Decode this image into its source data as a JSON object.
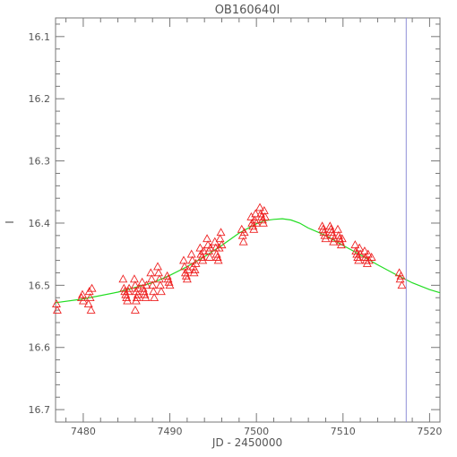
{
  "chart_data": {
    "type": "scatter",
    "title": "OB160640I",
    "xlabel": "JD - 2450000",
    "ylabel": "I",
    "xlim": [
      7476.8,
      7521.2
    ],
    "ylim": [
      16.72,
      16.07
    ],
    "y_inverted": true,
    "x_ticks": [
      7480,
      7490,
      7500,
      7510,
      7520
    ],
    "y_ticks": [
      16.1,
      16.2,
      16.3,
      16.4,
      16.5,
      16.6,
      16.7
    ],
    "x_tick_labels": [
      "7480",
      "7490",
      "7500",
      "7510",
      "7520"
    ],
    "y_tick_labels": [
      "16.1",
      "16.2",
      "16.3",
      "16.4",
      "16.5",
      "16.6",
      "16.7"
    ],
    "grid": false,
    "vertical_line": {
      "x": 7517.3,
      "color": "#8f8fd8"
    },
    "model_curve": {
      "color": "#22dd22",
      "x": [
        7476.8,
        7480,
        7484,
        7488,
        7490,
        7492,
        7494,
        7496,
        7498,
        7500,
        7501,
        7502,
        7503,
        7504,
        7505,
        7506,
        7508,
        7510,
        7512,
        7514,
        7516,
        7518,
        7520,
        7521.2
      ],
      "y": [
        16.528,
        16.522,
        16.511,
        16.496,
        16.484,
        16.47,
        16.454,
        16.436,
        16.416,
        16.401,
        16.396,
        16.394,
        16.393,
        16.395,
        16.4,
        16.408,
        16.42,
        16.436,
        16.451,
        16.467,
        16.482,
        16.496,
        16.507,
        16.512
      ]
    },
    "series": [
      {
        "marker": "triangle-open",
        "color": "#ee2222",
        "x": [
          7476.9,
          7477.0,
          7479.8,
          7479.9,
          7480.0,
          7480.6,
          7480.7,
          7480.8,
          7480.9,
          7481.0,
          7484.6,
          7484.7,
          7484.8,
          7484.9,
          7485.0,
          7485.1,
          7485.2,
          7485.3,
          7485.9,
          7486.0,
          7486.1,
          7486.2,
          7486.3,
          7486.4,
          7486.0,
          7486.1,
          7486.8,
          7486.9,
          7487.0,
          7487.1,
          7487.2,
          7487.3,
          7487.8,
          7487.9,
          7488.0,
          7488.1,
          7488.2,
          7488.6,
          7488.7,
          7488.8,
          7488.9,
          7489.0,
          7489.7,
          7489.8,
          7489.9,
          7490.0,
          7491.6,
          7491.7,
          7491.8,
          7491.9,
          7492.0,
          7492.1,
          7492.5,
          7492.6,
          7492.7,
          7492.8,
          7492.9,
          7493.0,
          7493.5,
          7493.6,
          7493.7,
          7493.8,
          7493.9,
          7494.3,
          7494.4,
          7494.5,
          7494.6,
          7494.7,
          7495.2,
          7495.3,
          7495.4,
          7495.5,
          7495.6,
          7495.7,
          7495.8,
          7495.9,
          7496.0,
          7498.3,
          7498.4,
          7498.5,
          7498.6,
          7499.4,
          7499.5,
          7499.6,
          7499.7,
          7499.8,
          7499.9,
          7500.0,
          7500.4,
          7500.5,
          7500.6,
          7500.7,
          7500.8,
          7500.9,
          7501.0,
          7507.6,
          7507.7,
          7507.8,
          7507.9,
          7508.0,
          7508.5,
          7508.6,
          7508.7,
          7508.8,
          7508.9,
          7509.0,
          7509.4,
          7509.5,
          7509.6,
          7509.7,
          7509.8,
          7509.9,
          7511.4,
          7511.5,
          7511.6,
          7511.7,
          7511.8,
          7511.9,
          7512.0,
          7512.5,
          7512.6,
          7512.7,
          7512.8,
          7512.9,
          7513.0,
          7513.3,
          7516.5,
          7516.6,
          7516.7,
          7516.8
        ],
        "y": [
          16.53,
          16.54,
          16.52,
          16.515,
          16.525,
          16.53,
          16.51,
          16.52,
          16.54,
          16.505,
          16.49,
          16.505,
          16.51,
          16.515,
          16.52,
          16.525,
          16.51,
          16.505,
          16.49,
          16.5,
          16.51,
          16.52,
          16.515,
          16.505,
          16.54,
          16.525,
          16.495,
          16.505,
          16.51,
          16.515,
          16.52,
          16.5,
          16.48,
          16.49,
          16.5,
          16.51,
          16.52,
          16.47,
          16.48,
          16.49,
          16.5,
          16.51,
          16.485,
          16.49,
          16.495,
          16.5,
          16.46,
          16.47,
          16.48,
          16.485,
          16.49,
          16.475,
          16.45,
          16.46,
          16.47,
          16.48,
          16.475,
          16.465,
          16.44,
          16.45,
          16.455,
          16.46,
          16.445,
          16.425,
          16.435,
          16.445,
          16.455,
          16.44,
          16.43,
          16.44,
          16.45,
          16.455,
          16.46,
          16.44,
          16.425,
          16.415,
          16.435,
          16.41,
          16.42,
          16.43,
          16.415,
          16.39,
          16.4,
          16.405,
          16.41,
          16.395,
          16.385,
          16.4,
          16.375,
          16.385,
          16.39,
          16.395,
          16.4,
          16.38,
          16.39,
          16.405,
          16.41,
          16.415,
          16.42,
          16.425,
          16.405,
          16.41,
          16.415,
          16.42,
          16.43,
          16.425,
          16.41,
          16.42,
          16.425,
          16.43,
          16.435,
          16.425,
          16.435,
          16.445,
          16.45,
          16.455,
          16.46,
          16.44,
          16.45,
          16.445,
          16.455,
          16.46,
          16.465,
          16.45,
          16.46,
          16.455,
          16.48,
          16.49,
          16.485,
          16.5
        ]
      }
    ]
  }
}
